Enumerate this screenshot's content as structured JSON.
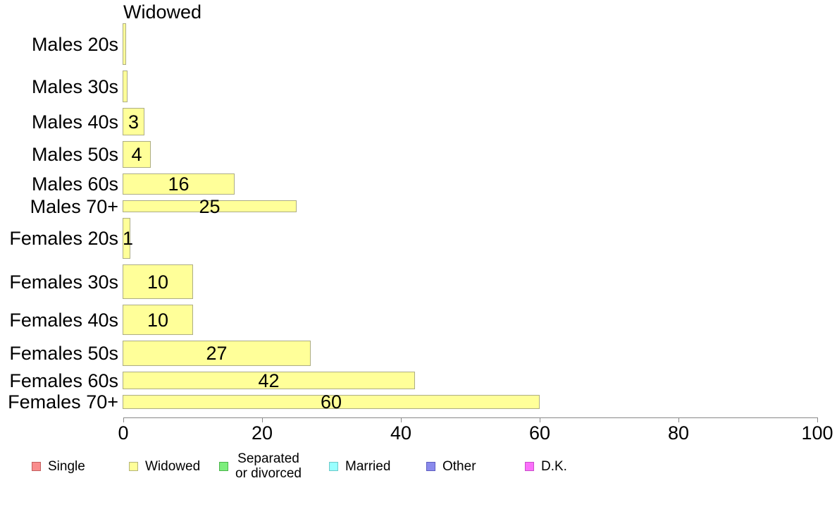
{
  "chart_data": {
    "type": "bar",
    "orientation": "horizontal",
    "title": "Widowed",
    "categories": [
      "Males 20s",
      "Males 30s",
      "Males 40s",
      "Males 50s",
      "Males 60s",
      "Males 70+",
      "Females 20s",
      "Females 30s",
      "Females 40s",
      "Females 50s",
      "Females 60s",
      "Females 70+"
    ],
    "values": [
      0.4,
      0.6,
      3,
      4,
      16,
      25,
      1,
      10,
      10,
      27,
      42,
      60
    ],
    "bar_labels": [
      "",
      "",
      "3",
      "4",
      "16",
      "25",
      "1",
      "10",
      "10",
      "27",
      "42",
      "60"
    ],
    "bar_thickness_px": [
      59,
      45,
      39,
      38,
      30,
      17,
      58,
      49,
      43,
      36,
      25,
      20
    ],
    "xlim": [
      0,
      100
    ],
    "xticks": [
      0,
      20,
      40,
      60,
      80,
      100
    ],
    "grid": "off",
    "bar_fill": "#ffff99",
    "bar_border": "#adad85",
    "axis_color": "#888888",
    "legend_position": "bottom",
    "legend": [
      {
        "label": "Single",
        "fill": "#f98c8c",
        "border": "#c25f5f"
      },
      {
        "label": "Widowed",
        "fill": "#ffff99",
        "border": "#b5b578"
      },
      {
        "label": "Separated or divorced",
        "lines": [
          "Separated",
          "or divorced"
        ],
        "fill": "#7dee7d",
        "border": "#4bb44b"
      },
      {
        "label": "Married",
        "fill": "#99ffff",
        "border": "#6cc9c9"
      },
      {
        "label": "Other",
        "fill": "#8a8aec",
        "border": "#5d5dc0"
      },
      {
        "label": "D.K.",
        "fill": "#fb6ffb",
        "border": "#c94fc9"
      }
    ]
  }
}
